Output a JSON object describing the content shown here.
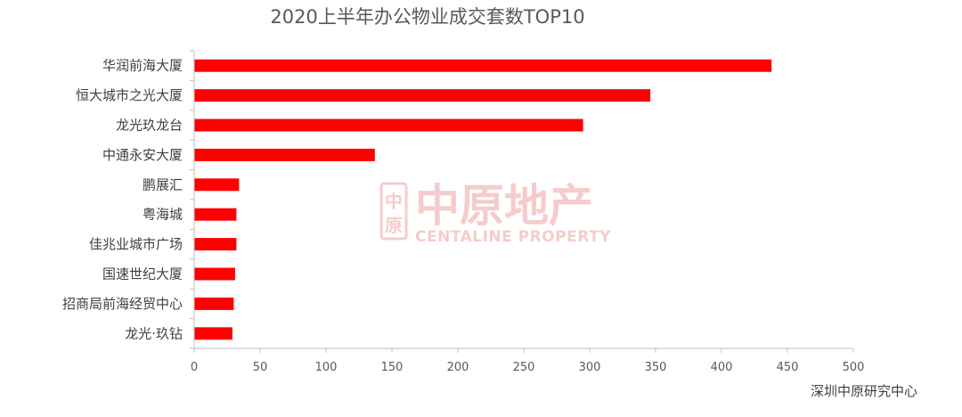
{
  "chart_data": {
    "type": "bar",
    "orientation": "horizontal",
    "title": "2020上半年办公物业成交套数TOP10",
    "categories": [
      "华润前海大厦",
      "恒大城市之光大厦",
      "龙光玖龙台",
      "中通永安大厦",
      "鹏展汇",
      "粤海城",
      "佳兆业城市广场",
      "国速世纪大厦",
      "招商局前海经贸中心",
      "龙光·玖钻"
    ],
    "values": [
      438,
      346,
      295,
      137,
      34,
      32,
      32,
      31,
      30,
      29
    ],
    "xlim": [
      0,
      500
    ],
    "xticks": [
      0,
      50,
      100,
      150,
      200,
      250,
      300,
      350,
      400,
      450,
      500
    ],
    "xlabel": "",
    "ylabel": "",
    "grid": false,
    "bar_color": "#ff0000"
  },
  "watermark": {
    "text_cn": "中原地产",
    "text_en": "CENTALINE PROPERTY",
    "logo_glyph": "中原"
  },
  "source_note": "深圳中原研究中心"
}
